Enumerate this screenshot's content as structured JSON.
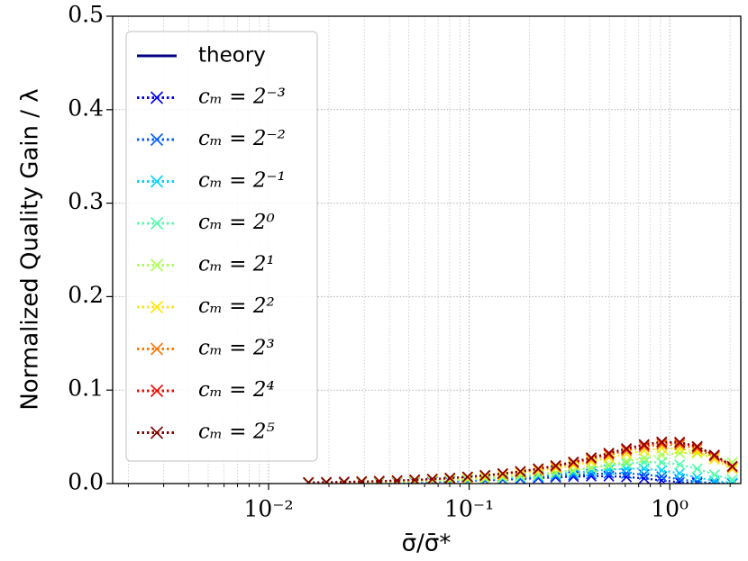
{
  "chart_data": {
    "type": "line",
    "xlabel": "σ̄/σ̄*",
    "ylabel": "Normalized Quality Gain / λ",
    "xscale": "log",
    "xlim": [
      0.00167,
      2.26
    ],
    "ylim": [
      0,
      0.5
    ],
    "xticks": [
      {
        "value": 0.01,
        "label": "10⁻²"
      },
      {
        "value": 0.1,
        "label": "10⁻¹"
      },
      {
        "value": 1,
        "label": "10⁰"
      }
    ],
    "xminorticks": [
      0.002,
      0.003,
      0.004,
      0.005,
      0.006,
      0.007,
      0.008,
      0.009,
      0.02,
      0.03,
      0.04,
      0.05,
      0.06,
      0.07,
      0.08,
      0.09,
      0.2,
      0.3,
      0.4,
      0.5,
      0.6,
      0.7,
      0.8,
      0.9,
      2
    ],
    "yticks": [
      {
        "value": 0,
        "label": "0.0"
      },
      {
        "value": 0.1,
        "label": "0.1"
      },
      {
        "value": 0.2,
        "label": "0.2"
      },
      {
        "value": 0.3,
        "label": "0.3"
      },
      {
        "value": 0.4,
        "label": "0.4"
      },
      {
        "value": 0.5,
        "label": "0.5"
      }
    ],
    "grid": true,
    "legend": "upper left",
    "x": [
      0.0158,
      0.0194,
      0.0238,
      0.0291,
      0.0356,
      0.0437,
      0.0535,
      0.0655,
      0.0802,
      0.0982,
      0.12,
      0.147,
      0.18,
      0.221,
      0.27,
      0.331,
      0.406,
      0.497,
      0.608,
      0.745,
      0.912,
      1.12,
      1.37,
      1.67,
      2.05
    ],
    "series": [
      {
        "name": "theory",
        "color": "#000080",
        "marker": "none",
        "linestyle": "solid",
        "values": [
          null,
          null,
          null,
          null,
          null,
          null,
          null,
          null,
          null,
          null,
          null,
          null,
          null,
          null,
          null,
          null,
          null,
          null,
          null,
          null,
          null,
          null,
          null,
          null,
          null
        ]
      },
      {
        "name": "cₘ = 2⁻³",
        "color": "#0000f1",
        "marker": "x",
        "linestyle": "dotted",
        "values": [
          0.0005,
          0.0006,
          0.0007,
          0.0009,
          0.0011,
          0.0013,
          0.0016,
          0.0019,
          0.0023,
          0.0029,
          0.0034,
          0.0041,
          0.0049,
          0.0058,
          0.0067,
          0.0074,
          0.0079,
          0.0079,
          0.0071,
          0.0055,
          0.0033,
          0.0015,
          0.0004,
          0.0001,
          0.0
        ]
      },
      {
        "name": "cₘ = 2⁻²",
        "color": "#0060ff",
        "marker": "x",
        "linestyle": "dotted",
        "values": [
          0.0005,
          0.0006,
          0.0008,
          0.001,
          0.0012,
          0.0014,
          0.0018,
          0.0022,
          0.0026,
          0.0032,
          0.0039,
          0.0047,
          0.0057,
          0.0068,
          0.008,
          0.0092,
          0.0102,
          0.0109,
          0.0108,
          0.0097,
          0.0075,
          0.0046,
          0.002,
          0.0005,
          0.0001
        ]
      },
      {
        "name": "cₘ = 2⁻¹",
        "color": "#00d4ff",
        "marker": "x",
        "linestyle": "dotted",
        "values": [
          0.0006,
          0.0008,
          0.0009,
          0.0012,
          0.0014,
          0.0017,
          0.0021,
          0.0026,
          0.0031,
          0.0038,
          0.0047,
          0.0057,
          0.0069,
          0.0083,
          0.0099,
          0.0116,
          0.0133,
          0.0149,
          0.0159,
          0.0158,
          0.0141,
          0.0109,
          0.0066,
          0.0029,
          0.0008
        ]
      },
      {
        "name": "cₘ = 2⁰",
        "color": "#4cffaa",
        "marker": "x",
        "linestyle": "dotted",
        "values": [
          0.0007,
          0.0009,
          0.0011,
          0.0014,
          0.0017,
          0.002,
          0.0025,
          0.003,
          0.0037,
          0.0045,
          0.0055,
          0.0067,
          0.0082,
          0.0099,
          0.0119,
          0.0142,
          0.0167,
          0.0192,
          0.0214,
          0.0228,
          0.0227,
          0.0203,
          0.0157,
          0.0095,
          0.0042
        ]
      },
      {
        "name": "cₘ = 2¹",
        "color": "#aaff4d",
        "marker": "x",
        "linestyle": "dotted",
        "values": [
          0.0007,
          0.0009,
          0.0011,
          0.0013,
          0.0016,
          0.0019,
          0.0024,
          0.0029,
          0.0036,
          0.0043,
          0.0053,
          0.0065,
          0.0079,
          0.0096,
          0.0117,
          0.0142,
          0.0171,
          0.0203,
          0.0239,
          0.0275,
          0.0307,
          0.0327,
          0.0325,
          0.0292,
          0.0225
        ]
      },
      {
        "name": "cₘ = 2²",
        "color": "#ffe600",
        "marker": "x",
        "linestyle": "dotted",
        "values": [
          0.001,
          0.0012,
          0.0015,
          0.0018,
          0.0022,
          0.0027,
          0.0033,
          0.0041,
          0.005,
          0.0061,
          0.0075,
          0.0091,
          0.0111,
          0.0135,
          0.0163,
          0.0196,
          0.0234,
          0.0275,
          0.0317,
          0.0354,
          0.0377,
          0.0375,
          0.0336,
          0.0259,
          0.0157
        ]
      },
      {
        "name": "cₘ = 2³",
        "color": "#ff7600",
        "marker": "x",
        "linestyle": "dotted",
        "values": [
          0.0011,
          0.0013,
          0.0016,
          0.002,
          0.0025,
          0.003,
          0.0037,
          0.0045,
          0.0055,
          0.0068,
          0.0082,
          0.0101,
          0.0123,
          0.0149,
          0.018,
          0.0217,
          0.0259,
          0.0304,
          0.035,
          0.0391,
          0.0417,
          0.0414,
          0.0371,
          0.0287,
          0.0174
        ]
      },
      {
        "name": "cₘ = 2⁴",
        "color": "#f10800",
        "marker": "x",
        "linestyle": "dotted",
        "values": [
          0.0011,
          0.0014,
          0.0017,
          0.0021,
          0.0026,
          0.0032,
          0.0039,
          0.0047,
          0.0058,
          0.0071,
          0.0086,
          0.0106,
          0.0128,
          0.0156,
          0.0189,
          0.0227,
          0.0271,
          0.0319,
          0.0367,
          0.0409,
          0.0436,
          0.0434,
          0.0389,
          0.03,
          0.0182
        ]
      },
      {
        "name": "cₘ = 2⁵",
        "color": "#800000",
        "marker": "x",
        "linestyle": "dotted",
        "values": [
          0.0012,
          0.0014,
          0.0018,
          0.0022,
          0.0026,
          0.0032,
          0.004,
          0.0049,
          0.0059,
          0.0072,
          0.0088,
          0.0108,
          0.0131,
          0.016,
          0.0193,
          0.0232,
          0.0277,
          0.0326,
          0.0375,
          0.0419,
          0.0446,
          0.0444,
          0.0398,
          0.0307,
          0.0186
        ]
      }
    ]
  }
}
